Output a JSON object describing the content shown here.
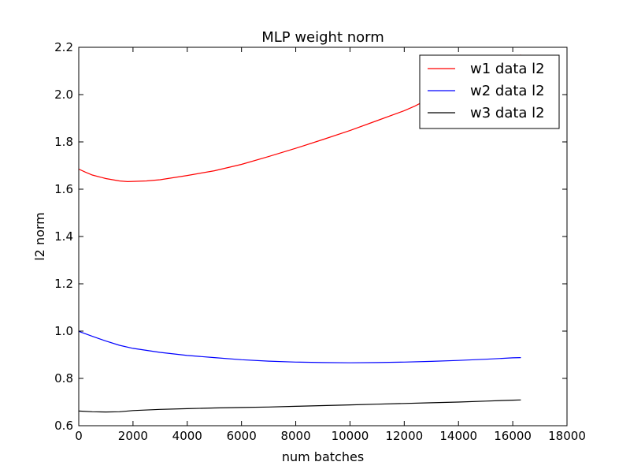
{
  "chart_data": {
    "type": "line",
    "title": "MLP weight norm",
    "xlabel": "num batches",
    "ylabel": "l2 norm",
    "xlim": [
      0,
      18000
    ],
    "ylim": [
      0.6,
      2.2
    ],
    "xticks": [
      0,
      2000,
      4000,
      6000,
      8000,
      10000,
      12000,
      14000,
      16000,
      18000
    ],
    "yticks": [
      0.6,
      0.8,
      1.0,
      1.2,
      1.4,
      1.6,
      1.8,
      2.0,
      2.2
    ],
    "xtick_labels": [
      "0",
      "2000",
      "4000",
      "6000",
      "8000",
      "10000",
      "12000",
      "14000",
      "16000",
      "18000"
    ],
    "ytick_labels": [
      "0.6",
      "0.8",
      "1.0",
      "1.2",
      "1.4",
      "1.6",
      "1.8",
      "2.0",
      "2.2"
    ],
    "grid": false,
    "legend_position": "top-right",
    "series": [
      {
        "name": "w1 data l2",
        "color": "#ff0000",
        "x": [
          0,
          250,
          500,
          1000,
          1500,
          1800,
          2000,
          2500,
          3000,
          4000,
          5000,
          6000,
          7000,
          8000,
          9000,
          10000,
          11000,
          12000,
          12400,
          12700,
          13000,
          14000,
          15000,
          16000,
          16300
        ],
        "y": [
          1.685,
          1.672,
          1.66,
          1.645,
          1.635,
          1.632,
          1.633,
          1.635,
          1.64,
          1.658,
          1.678,
          1.705,
          1.738,
          1.773,
          1.81,
          1.848,
          1.89,
          1.932,
          1.952,
          1.97,
          1.988,
          2.04,
          2.095,
          2.15,
          2.168
        ]
      },
      {
        "name": "w2 data l2",
        "color": "#0000ff",
        "x": [
          0,
          500,
          1000,
          1500,
          2000,
          3000,
          4000,
          5000,
          6000,
          7000,
          8000,
          9000,
          10000,
          11000,
          12000,
          13000,
          14000,
          15000,
          16000,
          16300
        ],
        "y": [
          0.999,
          0.978,
          0.958,
          0.94,
          0.927,
          0.91,
          0.897,
          0.888,
          0.879,
          0.873,
          0.869,
          0.867,
          0.866,
          0.867,
          0.869,
          0.872,
          0.876,
          0.881,
          0.887,
          0.888
        ]
      },
      {
        "name": "w3 data l2",
        "color": "#000000",
        "x": [
          0,
          500,
          1000,
          1500,
          2000,
          3000,
          4000,
          5000,
          6000,
          7000,
          8000,
          9000,
          10000,
          11000,
          12000,
          13000,
          14000,
          15000,
          16000,
          16300
        ],
        "y": [
          0.662,
          0.659,
          0.658,
          0.659,
          0.664,
          0.669,
          0.672,
          0.675,
          0.677,
          0.679,
          0.682,
          0.685,
          0.688,
          0.691,
          0.694,
          0.697,
          0.7,
          0.704,
          0.708,
          0.709
        ]
      }
    ]
  }
}
